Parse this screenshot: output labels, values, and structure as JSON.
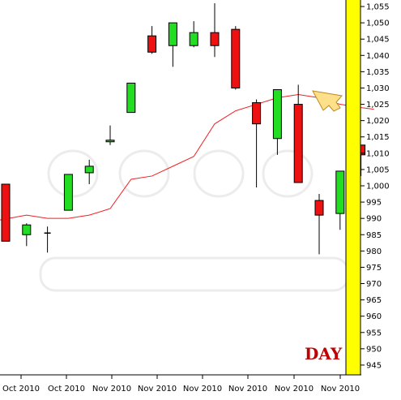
{
  "chart_data": {
    "type": "candlestick",
    "title": "",
    "xlabel": "",
    "ylabel": "",
    "timeframe_label": "DAY",
    "ylim": [
      942,
      1057
    ],
    "y_ticks": [
      945,
      950,
      955,
      960,
      965,
      970,
      975,
      980,
      985,
      990,
      995,
      1000,
      1005,
      1010,
      1015,
      1020,
      1025,
      1030,
      1035,
      1040,
      1045,
      1050,
      1055
    ],
    "y_tick_labels": [
      "945",
      "950",
      "955",
      "960",
      "965",
      "970",
      "975",
      "980",
      "985",
      "990",
      "995",
      "1,000",
      "1,005",
      "1,010",
      "1,015",
      "1,020",
      "1,025",
      "1,030",
      "1,035",
      "1,040",
      "1,045",
      "1,050",
      "1,055"
    ],
    "x_tick_labels": [
      "Oct 2010",
      "Oct 2010",
      "Nov 2010",
      "Nov 2010",
      "Nov 2010",
      "Nov 2010",
      "Nov 2010",
      "Nov 2010"
    ],
    "grid": false,
    "colors": {
      "up": "#22dd22",
      "down": "#ee1111",
      "doji": "#000000",
      "moving_average": "#ee2222",
      "price_axis_highlight": "#ffff00",
      "watermark": "#eeeeee"
    },
    "candles": [
      {
        "open": 1000.5,
        "high": 1000.5,
        "low": 983,
        "close": 983
      },
      {
        "open": 985,
        "high": 988.5,
        "low": 981.5,
        "close": 988
      },
      {
        "open": 985.5,
        "high": 987.5,
        "low": 979.5,
        "close": 985.5
      },
      {
        "open": 992.5,
        "high": 1003.5,
        "low": 992.5,
        "close": 1003.5
      },
      {
        "open": 1004,
        "high": 1008,
        "low": 1000.5,
        "close": 1006
      },
      {
        "open": 1013.5,
        "high": 1018.5,
        "low": 1012.5,
        "close": 1014
      },
      {
        "open": 1022.5,
        "high": 1031.5,
        "low": 1022.5,
        "close": 1031.5
      },
      {
        "open": 1046,
        "high": 1049,
        "low": 1040.5,
        "close": 1041
      },
      {
        "open": 1043,
        "high": 1050,
        "low": 1036.5,
        "close": 1050
      },
      {
        "open": 1043,
        "high": 1050.5,
        "low": 1042.5,
        "close": 1047
      },
      {
        "open": 1047,
        "high": 1056,
        "low": 1039.5,
        "close": 1043
      },
      {
        "open": 1048,
        "high": 1049,
        "low": 1029.5,
        "close": 1030
      },
      {
        "open": 1025.5,
        "high": 1026.5,
        "low": 999.5,
        "close": 1019
      },
      {
        "open": 1014.5,
        "high": 1029.5,
        "low": 1009.5,
        "close": 1029.5
      },
      {
        "open": 1025,
        "high": 1031,
        "low": 1001,
        "close": 1001
      },
      {
        "open": 995.5,
        "high": 997.5,
        "low": 979,
        "close": 991
      },
      {
        "open": 991.5,
        "high": 1004.5,
        "low": 986.5,
        "close": 1004.5
      },
      {
        "open": 1012.5,
        "high": 1012.5,
        "low": 1003,
        "close": 1009.5
      }
    ],
    "moving_average": [
      989.5,
      991,
      990,
      990,
      991,
      993,
      1002,
      1003,
      1006,
      1009,
      1019,
      1023,
      1025,
      1027,
      1028,
      1027,
      1025,
      1024
    ]
  }
}
